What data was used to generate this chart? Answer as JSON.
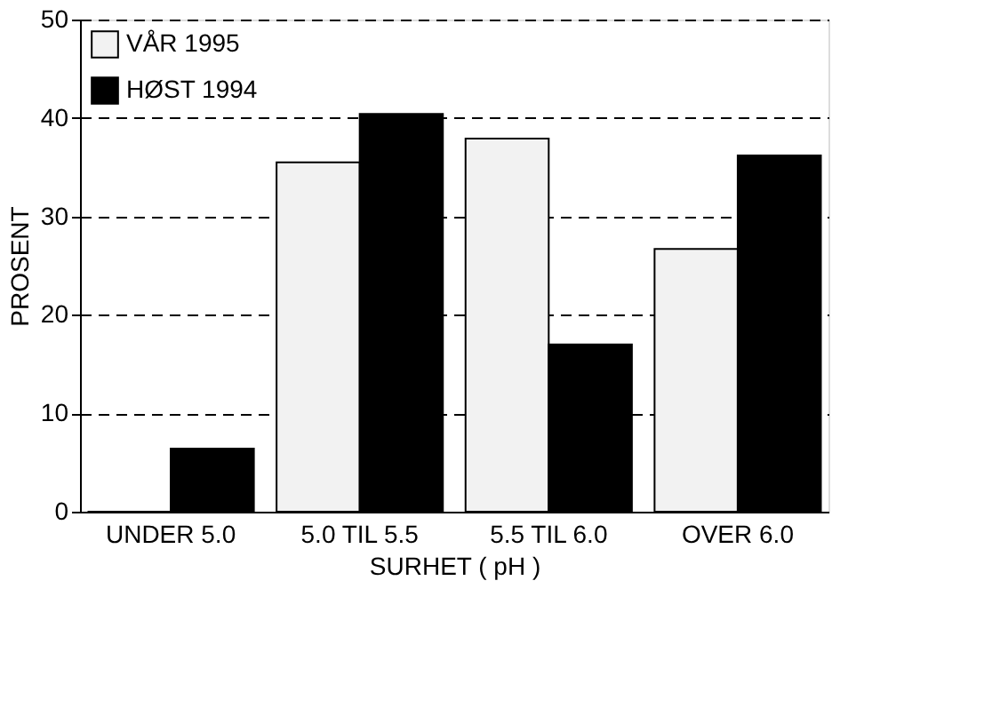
{
  "chart_data": {
    "type": "bar",
    "xlabel": "SURHET ( pH )",
    "ylabel": "PROSENT",
    "categories": [
      "UNDER 5.0",
      "5.0 TIL 5.5",
      "5.5 TIL 6.0",
      "OVER 6.0"
    ],
    "series": [
      {
        "name": "VÅR 1995",
        "color": "#f2f2f2",
        "values": [
          0,
          35.5,
          37.9,
          26.7
        ]
      },
      {
        "name": "HØST 1994",
        "color": "#000000",
        "values": [
          6.4,
          40.4,
          17.0,
          36.2
        ]
      }
    ],
    "ylim": [
      0,
      50
    ],
    "yticks": [
      0,
      10,
      20,
      30,
      40,
      50
    ],
    "grid": "y",
    "legend": "top left"
  }
}
